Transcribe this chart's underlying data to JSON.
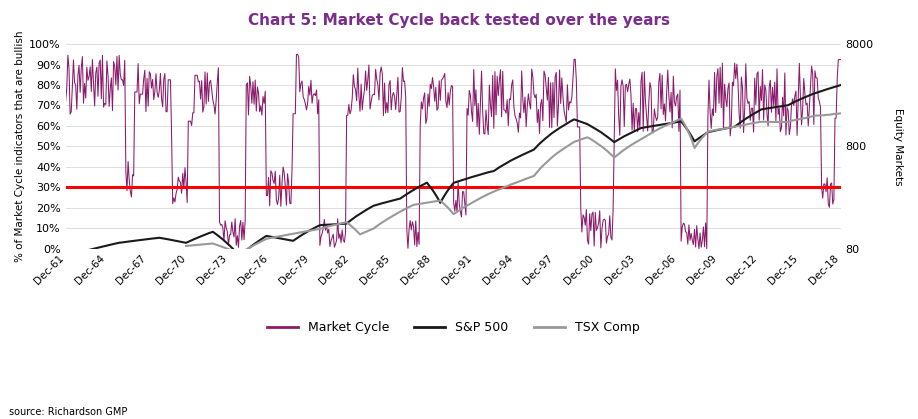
{
  "title": "Chart 5: Market Cycle back tested over the years",
  "title_color": "#7B2D8B",
  "ylabel_left": "% of Market Cycle indicators that are bullish",
  "ylabel_right": "Equity Markets",
  "source_text": "source: Richardson GMP",
  "red_line_pct": 0.3,
  "background_color": "#ffffff",
  "market_cycle_color": "#8B1A6B",
  "sp500_color": "#1a1a1a",
  "tsx_color": "#999999",
  "legend_labels": [
    "Market Cycle",
    "S&P 500",
    "TSX Comp"
  ],
  "x_tick_labels": [
    "Dec-61",
    "Dec-64",
    "Dec-67",
    "Dec-70",
    "Dec-73",
    "Dec-76",
    "Dec-79",
    "Dec-82",
    "Dec-85",
    "Dec-88",
    "Dec-91",
    "Dec-94",
    "Dec-97",
    "Dec-00",
    "Dec-03",
    "Dec-06",
    "Dec-09",
    "Dec-12",
    "Dec-15",
    "Dec-18"
  ],
  "ylim_left": [
    0.0,
    1.0
  ],
  "yr_min": 80,
  "yr_max": 8000,
  "yticks_left": [
    0.0,
    0.1,
    0.2,
    0.3,
    0.4,
    0.5,
    0.6,
    0.7,
    0.8,
    0.9,
    1.0
  ],
  "ytick_labels_left": [
    "0%",
    "10%",
    "20%",
    "30%",
    "40%",
    "50%",
    "60%",
    "70%",
    "80%",
    "90%",
    "100%"
  ],
  "yticks_right": [
    80,
    800,
    8000
  ],
  "ytick_labels_right": [
    "80",
    "800",
    "8000"
  ]
}
